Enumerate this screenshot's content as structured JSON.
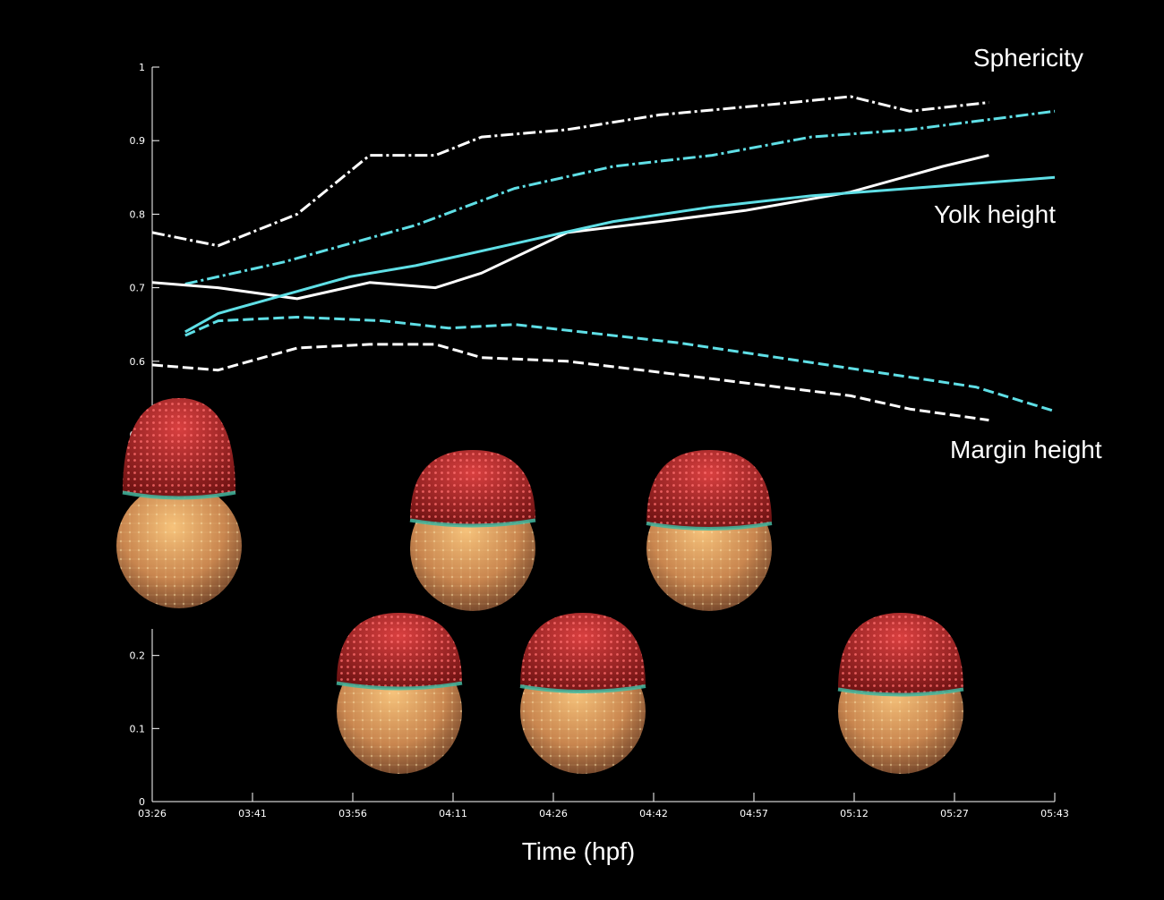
{
  "chart_data": {
    "type": "line",
    "xlabel": "Time (hpf)",
    "x_tick_labels": [
      "03:26",
      "03:41",
      "03:56",
      "04:11",
      "04:26",
      "04:42",
      "04:57",
      "05:12",
      "05:27",
      "05:43"
    ],
    "y_upper": {
      "ylim": [
        0.5,
        1.0
      ],
      "ticks": [
        "0.5",
        "0.6",
        "0.7",
        "0.8",
        "0.9",
        "1"
      ]
    },
    "y_lower": {
      "ylim": [
        0,
        0.24
      ],
      "ticks": [
        "0",
        "0.1",
        "0.2"
      ]
    },
    "x_range_minutes": [
      0,
      137
    ],
    "labels": {
      "sphericity": "Sphericity",
      "yolk_height": "Yolk height",
      "margin_height": "Margin height"
    },
    "colors": {
      "white": "#ffffff",
      "cyan": "#5fdfe6",
      "background": "#000000"
    },
    "series": [
      {
        "group": "sphericity",
        "color": "white",
        "style": "dashdot",
        "x": [
          0,
          10,
          22,
          33,
          43,
          50,
          63,
          77,
          95,
          106,
          115,
          127
        ],
        "y": [
          0.775,
          0.757,
          0.8,
          0.88,
          0.88,
          0.905,
          0.915,
          0.935,
          0.95,
          0.96,
          0.94,
          0.952
        ]
      },
      {
        "group": "sphericity",
        "color": "cyan",
        "style": "dashdot",
        "x": [
          5,
          20,
          40,
          55,
          70,
          85,
          100,
          115,
          137
        ],
        "y": [
          0.705,
          0.735,
          0.785,
          0.835,
          0.865,
          0.88,
          0.905,
          0.915,
          0.94
        ]
      },
      {
        "group": "yolk_height",
        "color": "white",
        "style": "solid",
        "x": [
          0,
          10,
          22,
          33,
          43,
          50,
          63,
          77,
          90,
          106,
          120,
          127
        ],
        "y": [
          0.707,
          0.7,
          0.685,
          0.707,
          0.7,
          0.72,
          0.775,
          0.79,
          0.805,
          0.83,
          0.865,
          0.88
        ]
      },
      {
        "group": "yolk_height",
        "color": "cyan",
        "style": "solid",
        "x": [
          5,
          10,
          20,
          30,
          40,
          55,
          70,
          85,
          100,
          115,
          137
        ],
        "y": [
          0.64,
          0.665,
          0.69,
          0.715,
          0.73,
          0.76,
          0.79,
          0.81,
          0.825,
          0.835,
          0.85
        ]
      },
      {
        "group": "margin_height",
        "color": "cyan",
        "style": "dashed",
        "x": [
          5,
          10,
          22,
          35,
          45,
          55,
          65,
          80,
          95,
          110,
          125,
          137
        ],
        "y": [
          0.635,
          0.655,
          0.66,
          0.655,
          0.645,
          0.65,
          0.64,
          0.625,
          0.605,
          0.585,
          0.565,
          0.532
        ]
      },
      {
        "group": "margin_height",
        "color": "white",
        "style": "dashed",
        "x": [
          0,
          10,
          22,
          33,
          43,
          50,
          63,
          77,
          95,
          106,
          115,
          127
        ],
        "y": [
          0.595,
          0.588,
          0.618,
          0.623,
          0.623,
          0.605,
          0.6,
          0.585,
          0.565,
          0.553,
          0.535,
          0.52
        ]
      }
    ],
    "lower_series": []
  }
}
